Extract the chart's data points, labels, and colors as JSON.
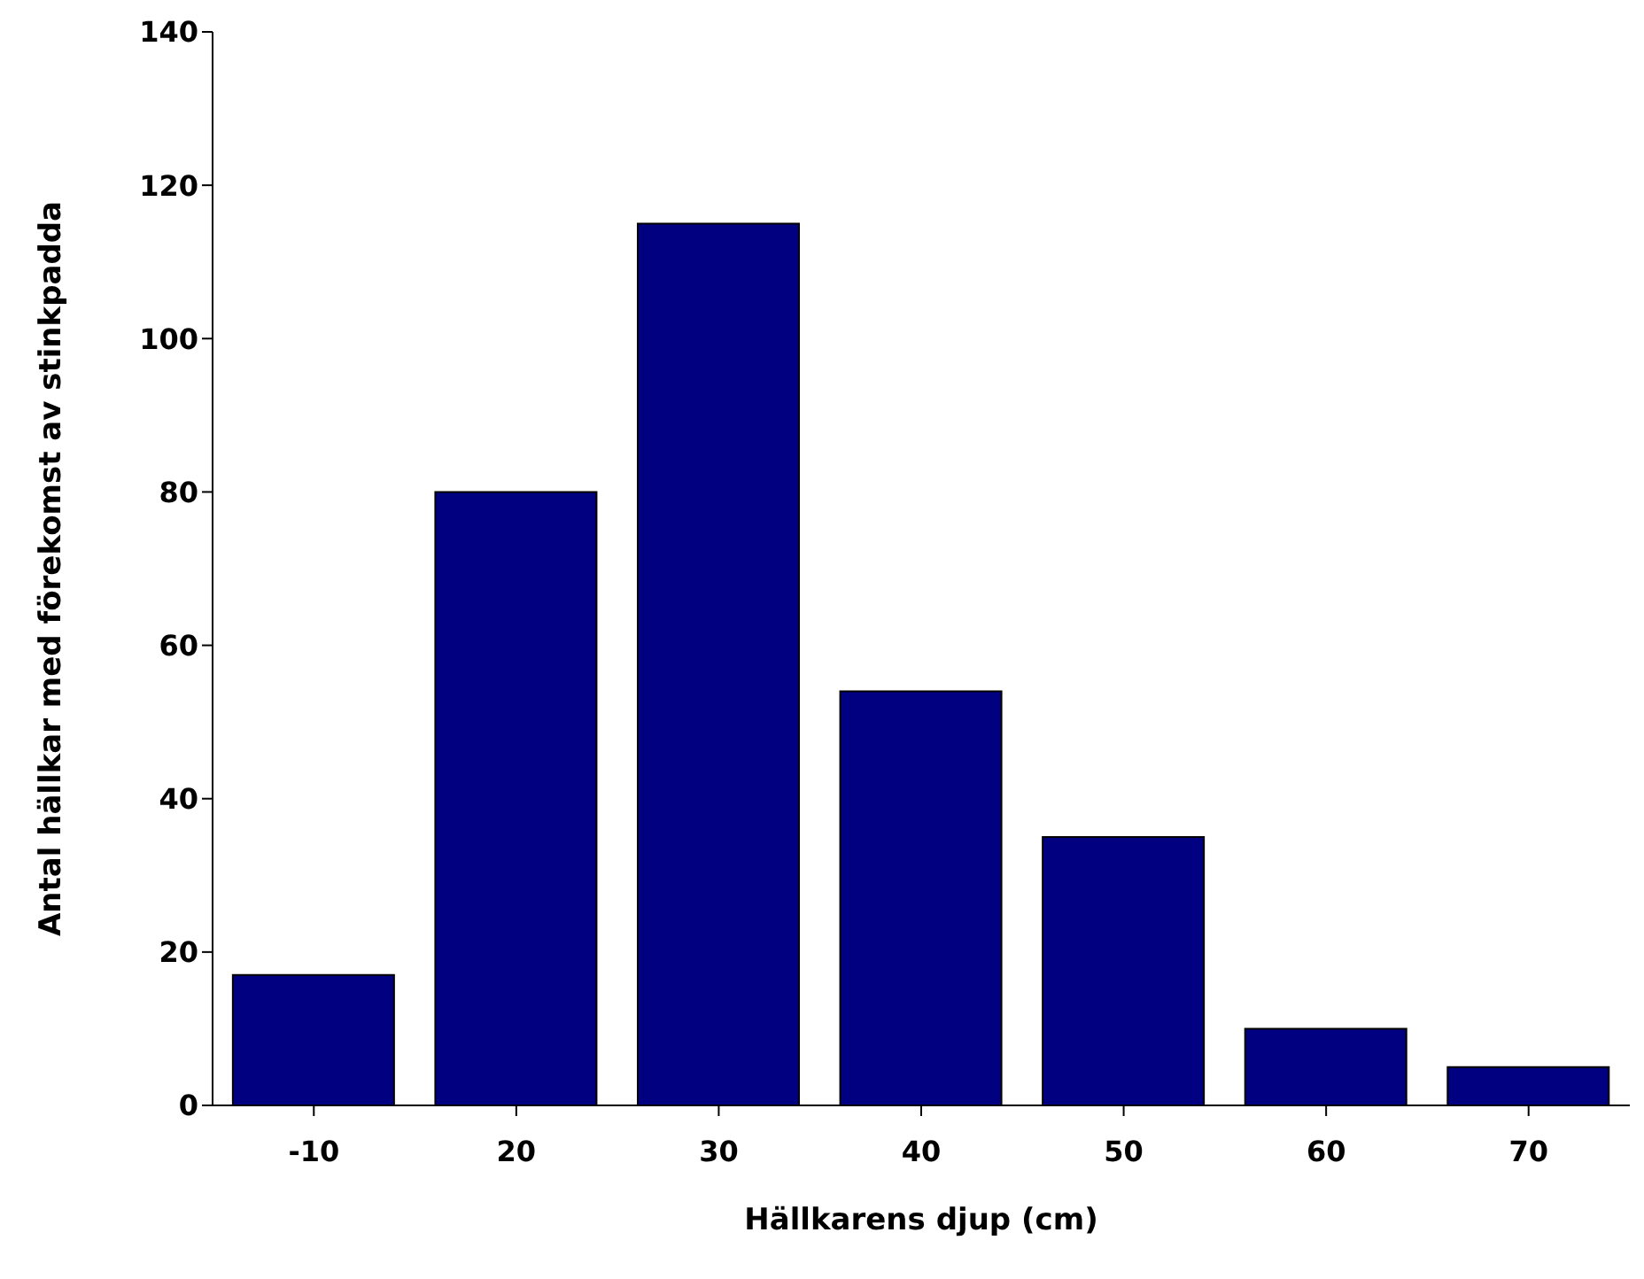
{
  "chart_data": {
    "type": "bar",
    "xlabel": "Hällkarens djup (cm)",
    "ylabel": "Antal hällkar med förekomst av stinkpadda",
    "categories": [
      "-10",
      "20",
      "30",
      "40",
      "50",
      "60",
      "70"
    ],
    "values": [
      17,
      80,
      115,
      54,
      35,
      10,
      5
    ],
    "color": "#000080",
    "ylim": [
      0,
      140
    ],
    "yticks": [
      0,
      20,
      40,
      60,
      80,
      100,
      120,
      140
    ],
    "grid": false,
    "legend": false
  }
}
